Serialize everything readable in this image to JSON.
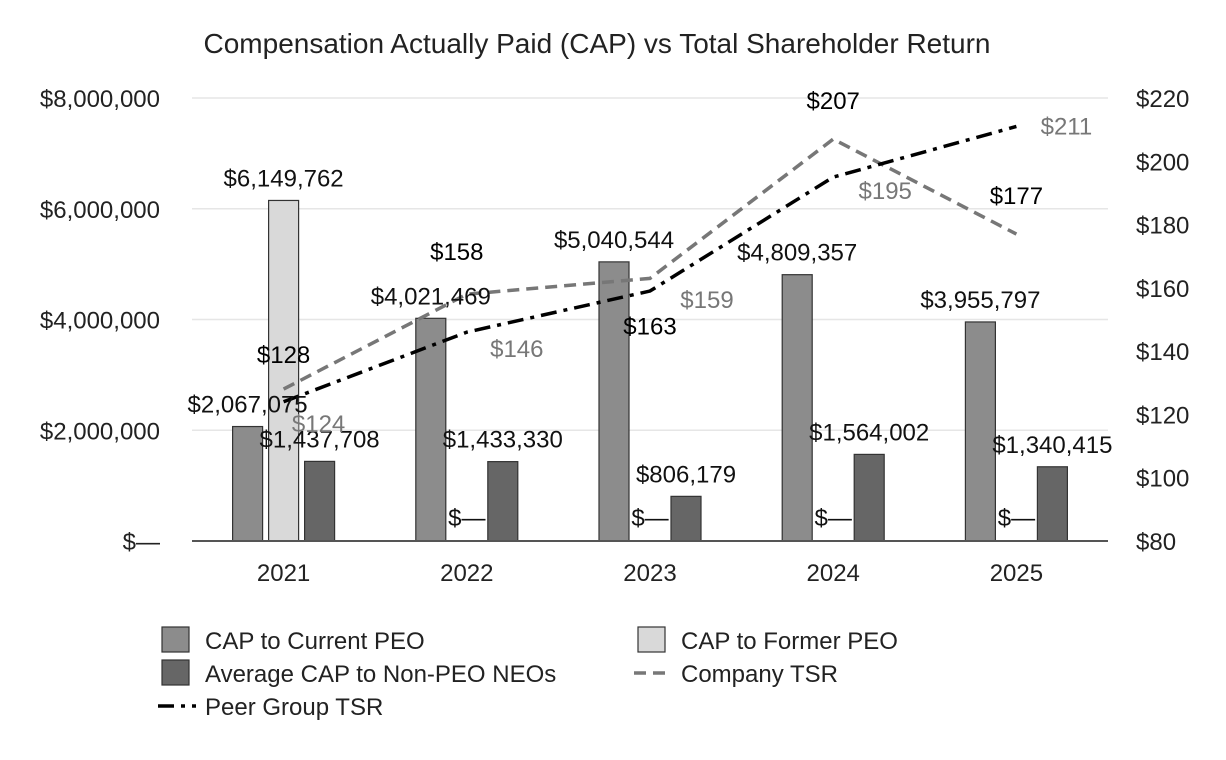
{
  "chart_data": {
    "type": "bar",
    "title": "Compensation Actually Paid (CAP) vs Total Shareholder Return",
    "categories": [
      "2021",
      "2022",
      "2023",
      "2024",
      "2025"
    ],
    "left_axis": {
      "ylim": [
        0,
        8000000
      ],
      "ticks": [
        0,
        2000000,
        4000000,
        6000000,
        8000000
      ],
      "tick_labels": [
        "$—",
        "$2,000,000",
        "$4,000,000",
        "$6,000,000",
        "$8,000,000"
      ]
    },
    "right_axis": {
      "ylim": [
        80,
        220
      ],
      "ticks": [
        80,
        100,
        120,
        140,
        160,
        180,
        200,
        220
      ],
      "tick_labels": [
        "$80",
        "$100",
        "$120",
        "$140",
        "$160",
        "$180",
        "$200",
        "$220"
      ]
    },
    "grid": true,
    "bar_series": [
      {
        "name": "CAP to Current PEO",
        "color": "#8c8c8c",
        "values": [
          2067075,
          4021469,
          5040544,
          4809357,
          3955797
        ],
        "labels": [
          "$2,067,075",
          "$4,021,469",
          "$5,040,544",
          "$4,809,357",
          "$3,955,797"
        ]
      },
      {
        "name": "CAP to Former PEO",
        "color": "#d9d9d9",
        "values": [
          6149762,
          0,
          0,
          0,
          0
        ],
        "labels": [
          "$6,149,762",
          "$—",
          "$—",
          "$—",
          "$—"
        ]
      },
      {
        "name": "Average CAP to Non-PEO NEOs",
        "color": "#666666",
        "values": [
          1437708,
          1433330,
          806179,
          1564002,
          1340415
        ],
        "labels": [
          "$1,437,708",
          "$1,433,330",
          "$806,179",
          "$1,564,002",
          "$1,340,415"
        ]
      }
    ],
    "line_series": [
      {
        "name": "Company TSR",
        "color": "#777777",
        "label_color": "#000000",
        "dash": "dashed",
        "values": [
          128,
          158,
          163,
          207,
          177
        ],
        "labels": [
          "$128",
          "$158",
          "$163",
          "$207",
          "$177"
        ]
      },
      {
        "name": "Peer Group TSR",
        "color": "#000000",
        "label_color": "#777777",
        "dash": "dash-dot",
        "values": [
          124,
          146,
          159,
          195,
          211
        ],
        "labels": [
          "$124",
          "$146",
          "$159",
          "$195",
          "$211"
        ]
      }
    ],
    "legend": {
      "placement": "bottom",
      "entries": [
        {
          "name": "CAP to Current PEO",
          "kind": "bar",
          "color": "#8c8c8c"
        },
        {
          "name": "CAP to Former PEO",
          "kind": "bar",
          "color": "#d9d9d9"
        },
        {
          "name": "Average CAP to Non-PEO NEOs",
          "kind": "bar",
          "color": "#666666"
        },
        {
          "name": "Company TSR",
          "kind": "line",
          "color": "#777777",
          "dash": "dashed"
        },
        {
          "name": "Peer Group TSR",
          "kind": "line",
          "color": "#000000",
          "dash": "dash-dot"
        }
      ]
    }
  }
}
